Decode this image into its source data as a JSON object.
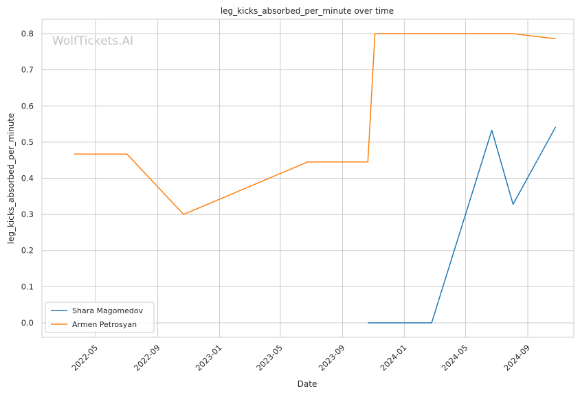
{
  "chart_data": {
    "type": "line",
    "title": "leg_kicks_absorbed_per_minute over time",
    "xlabel": "Date",
    "ylabel": "leg_kicks_absorbed_per_minute",
    "watermark": "WolfTickets.AI",
    "x_ticks": [
      "2022-05",
      "2022-09",
      "2023-01",
      "2023-05",
      "2023-09",
      "2024-01",
      "2024-05",
      "2024-09"
    ],
    "y_ticks": [
      "0.0",
      "0.1",
      "0.2",
      "0.3",
      "0.4",
      "0.5",
      "0.6",
      "0.7",
      "0.8"
    ],
    "ylim": [
      -0.04,
      0.84
    ],
    "xlim": [
      "2022-01-15",
      "2024-12-01"
    ],
    "grid": true,
    "legend_position": "lower-left",
    "series": [
      {
        "name": "Shara Magomedov",
        "color": "#1f77b4",
        "x": [
          "2023-10-21",
          "2024-02-24",
          "2024-06-22",
          "2024-08-03",
          "2024-10-26"
        ],
        "y": [
          0.0,
          0.0,
          0.533,
          0.328,
          0.542
        ]
      },
      {
        "name": "Armen Petrosyan",
        "color": "#ff7f0e",
        "x": [
          "2022-03-19",
          "2022-07-02",
          "2022-10-22",
          "2023-06-24",
          "2023-10-21",
          "2023-11-04",
          "2024-08-03",
          "2024-10-26"
        ],
        "y": [
          0.467,
          0.467,
          0.3,
          0.445,
          0.445,
          0.8,
          0.8,
          0.786
        ]
      }
    ]
  }
}
